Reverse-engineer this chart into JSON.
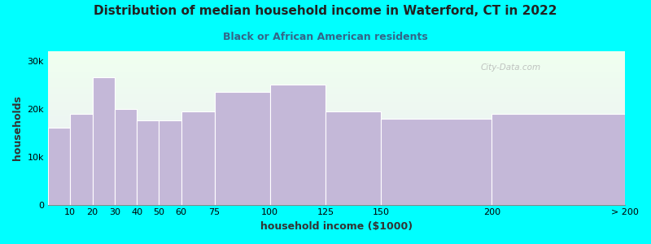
{
  "title": "Distribution of median household income in Waterford, CT in 2022",
  "subtitle": "Black or African American residents",
  "xlabel": "household income ($1000)",
  "ylabel": "households",
  "background_color": "#00FFFF",
  "plot_bg_top": "#efffef",
  "plot_bg_bottom": "#ebebf5",
  "bar_color": "#C4B8D8",
  "bar_edge_color": "#ffffff",
  "bin_lefts": [
    0,
    10,
    20,
    30,
    40,
    50,
    60,
    75,
    100,
    125,
    150,
    200
  ],
  "bin_rights": [
    10,
    20,
    30,
    40,
    50,
    60,
    75,
    100,
    125,
    150,
    200,
    260
  ],
  "values": [
    16000,
    19000,
    26500,
    20000,
    17500,
    17500,
    19500,
    23500,
    25000,
    19500,
    18000,
    19000
  ],
  "xtick_positions": [
    10,
    20,
    30,
    40,
    50,
    60,
    75,
    100,
    125,
    150,
    200,
    260
  ],
  "xtick_labels": [
    "10",
    "20",
    "30",
    "40",
    "50",
    "60",
    "75",
    "100",
    "125",
    "150",
    "200",
    "> 200"
  ],
  "ylim": [
    0,
    32000
  ],
  "yticks": [
    0,
    10000,
    20000,
    30000
  ],
  "ytick_labels": [
    "0",
    "10k",
    "20k",
    "30k"
  ],
  "title_fontsize": 11,
  "subtitle_fontsize": 9,
  "axis_label_fontsize": 9,
  "tick_fontsize": 8,
  "watermark": "City-Data.com"
}
